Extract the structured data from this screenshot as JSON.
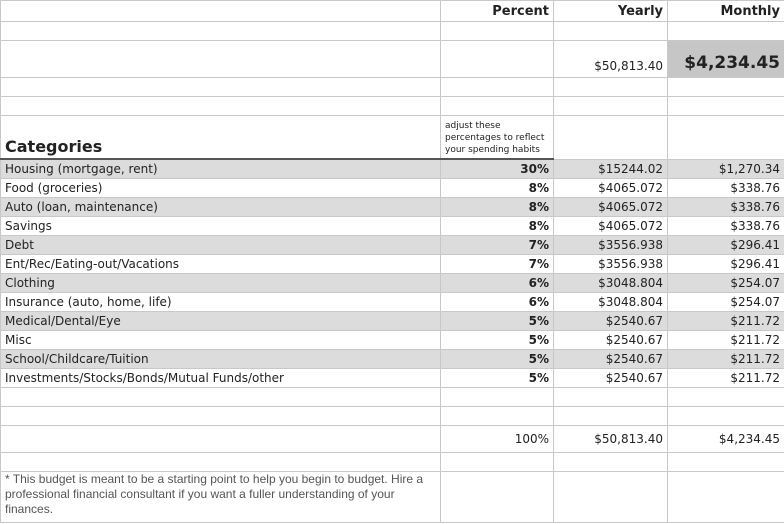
{
  "header": {
    "col_percent": "Percent",
    "col_yearly": "Yearly",
    "col_monthly": "Monthly"
  },
  "totals_top": {
    "yearly": "$50,813.40",
    "monthly": "$4,234.45"
  },
  "categories_title": "Categories",
  "adjust_note": "adjust these percentages to reflect your spending habits",
  "rows": [
    {
      "name": "Housing (mortgage, rent)",
      "percent": "30%",
      "yearly": "$15244.02",
      "monthly": "$1,270.34"
    },
    {
      "name": "Food (groceries)",
      "percent": "8%",
      "yearly": "$4065.072",
      "monthly": "$338.76"
    },
    {
      "name": "Auto (loan, maintenance)",
      "percent": "8%",
      "yearly": "$4065.072",
      "monthly": "$338.76"
    },
    {
      "name": "Savings",
      "percent": "8%",
      "yearly": "$4065.072",
      "monthly": "$338.76"
    },
    {
      "name": "Debt",
      "percent": "7%",
      "yearly": "$3556.938",
      "monthly": "$296.41"
    },
    {
      "name": "Ent/Rec/Eating-out/Vacations",
      "percent": "7%",
      "yearly": "$3556.938",
      "monthly": "$296.41"
    },
    {
      "name": "Clothing",
      "percent": "6%",
      "yearly": "$3048.804",
      "monthly": "$254.07"
    },
    {
      "name": "Insurance (auto, home, life)",
      "percent": "6%",
      "yearly": "$3048.804",
      "monthly": "$254.07"
    },
    {
      "name": "Medical/Dental/Eye",
      "percent": "5%",
      "yearly": "$2540.67",
      "monthly": "$211.72"
    },
    {
      "name": "Misc",
      "percent": "5%",
      "yearly": "$2540.67",
      "monthly": "$211.72"
    },
    {
      "name": "School/Childcare/Tuition",
      "percent": "5%",
      "yearly": "$2540.67",
      "monthly": "$211.72"
    },
    {
      "name": "Investments/Stocks/Bonds/Mutual Funds/other",
      "percent": "5%",
      "yearly": "$2540.67",
      "monthly": "$211.72"
    }
  ],
  "totals_bottom": {
    "percent": "100%",
    "yearly": "$50,813.40",
    "monthly": "$4,234.45"
  },
  "footnote": "* This budget is meant to be a starting point to help you begin to budget. Hire a professional financial consultant if you want a fuller understanding of your finances."
}
